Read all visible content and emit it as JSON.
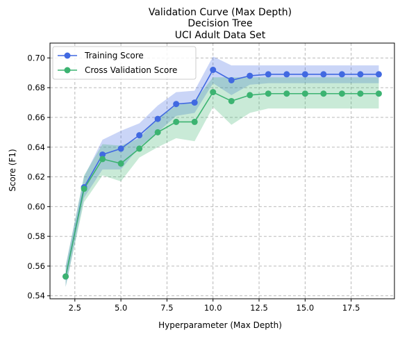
{
  "chart_data": {
    "type": "line",
    "title_lines": [
      "Validation Curve (Max Depth)",
      "Decision Tree",
      "UCI Adult Data Set"
    ],
    "xlabel": "Hyperparameter (Max Depth)",
    "ylabel": "Score (F1)",
    "xlim": [
      1.15,
      19.85
    ],
    "ylim": [
      0.538,
      0.71
    ],
    "xticks": [
      2.5,
      5.0,
      7.5,
      10.0,
      12.5,
      15.0,
      17.5
    ],
    "xtick_labels": [
      "2.5",
      "5.0",
      "7.5",
      "10.0",
      "12.5",
      "15.0",
      "17.5"
    ],
    "yticks": [
      0.54,
      0.56,
      0.58,
      0.6,
      0.62,
      0.64,
      0.66,
      0.68,
      0.7
    ],
    "ytick_labels": [
      "0.54",
      "0.56",
      "0.58",
      "0.60",
      "0.62",
      "0.64",
      "0.66",
      "0.68",
      "0.70"
    ],
    "grid": true,
    "legend_position": "top-left",
    "x": [
      2,
      3,
      4,
      5,
      6,
      7,
      8,
      9,
      10,
      11,
      12,
      13,
      14,
      15,
      16,
      17,
      18,
      19
    ],
    "series": [
      {
        "name": "Training Score",
        "color": "#4169e1",
        "fill_color": "#4169e1",
        "values": [
          0.553,
          0.613,
          0.635,
          0.639,
          0.648,
          0.659,
          0.669,
          0.67,
          0.692,
          0.685,
          0.688,
          0.689,
          0.689,
          0.689,
          0.689,
          0.689,
          0.689,
          0.689
        ],
        "lower": [
          0.546,
          0.606,
          0.625,
          0.625,
          0.64,
          0.65,
          0.661,
          0.663,
          0.683,
          0.675,
          0.682,
          0.683,
          0.683,
          0.683,
          0.683,
          0.683,
          0.683,
          0.683
        ],
        "upper": [
          0.56,
          0.62,
          0.645,
          0.651,
          0.656,
          0.668,
          0.677,
          0.678,
          0.701,
          0.695,
          0.695,
          0.695,
          0.695,
          0.695,
          0.695,
          0.695,
          0.695,
          0.695
        ]
      },
      {
        "name": "Cross Validation Score",
        "color": "#3cb371",
        "fill_color": "#3cb371",
        "values": [
          0.553,
          0.612,
          0.632,
          0.629,
          0.639,
          0.65,
          0.657,
          0.657,
          0.677,
          0.671,
          0.675,
          0.676,
          0.676,
          0.676,
          0.676,
          0.676,
          0.676,
          0.676
        ],
        "lower": [
          0.546,
          0.603,
          0.621,
          0.617,
          0.633,
          0.64,
          0.646,
          0.644,
          0.667,
          0.655,
          0.663,
          0.666,
          0.666,
          0.666,
          0.666,
          0.666,
          0.666,
          0.666
        ],
        "upper": [
          0.56,
          0.621,
          0.642,
          0.641,
          0.646,
          0.66,
          0.668,
          0.671,
          0.687,
          0.687,
          0.687,
          0.687,
          0.687,
          0.687,
          0.687,
          0.687,
          0.687,
          0.687
        ]
      }
    ]
  }
}
